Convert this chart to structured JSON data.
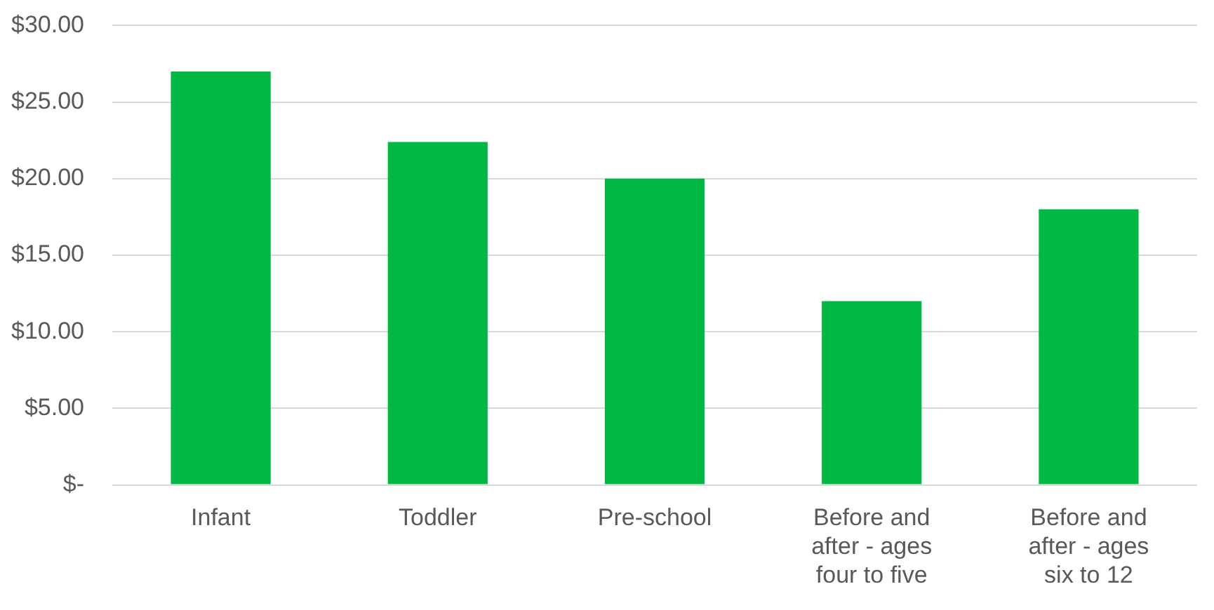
{
  "chart_data": {
    "type": "bar",
    "categories": [
      "Infant",
      "Toddler",
      "Pre-school",
      "Before and after - ages four to five",
      "Before and after - ages six to 12"
    ],
    "values": [
      27.0,
      22.4,
      20.0,
      12.0,
      18.0
    ],
    "color": "#00b843",
    "ylim": [
      0,
      30
    ],
    "yticks": [
      {
        "value": 0,
        "label": "$-"
      },
      {
        "value": 5,
        "label": "$5.00"
      },
      {
        "value": 10,
        "label": "$10.00"
      },
      {
        "value": 15,
        "label": "$15.00"
      },
      {
        "value": 20,
        "label": "$20.00"
      },
      {
        "value": 25,
        "label": "$25.00"
      },
      {
        "value": 30,
        "label": "$30.00"
      }
    ],
    "grid": "y",
    "legend": false
  }
}
